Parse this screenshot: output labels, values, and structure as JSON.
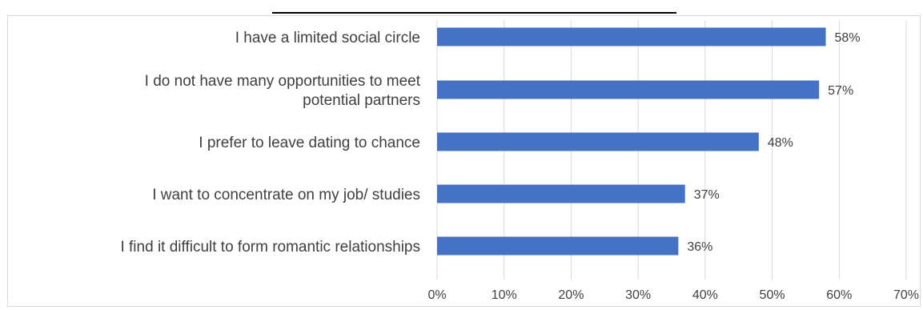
{
  "chart_data": {
    "type": "bar",
    "orientation": "horizontal",
    "title": "",
    "categories": [
      [
        "I have a limited social circle"
      ],
      [
        "I do not have many opportunities to meet",
        "potential partners"
      ],
      [
        "I prefer to leave dating to chance"
      ],
      [
        "I want to concentrate on my job/ studies"
      ],
      [
        "I find it difficult to form romantic relationships"
      ]
    ],
    "values": [
      58,
      57,
      48,
      37,
      36
    ],
    "data_labels": [
      "58%",
      "57%",
      "48%",
      "37%",
      "36%"
    ],
    "xlim": [
      0,
      70
    ],
    "x_ticks": [
      0,
      10,
      20,
      30,
      40,
      50,
      60,
      70
    ],
    "x_tick_labels": [
      "0%",
      "10%",
      "20%",
      "30%",
      "40%",
      "50%",
      "60%",
      "70%"
    ],
    "grid": true,
    "legend": "none",
    "colors": {
      "bar": "#4472c4",
      "grid": "#d9d9d9",
      "text": "#404040"
    }
  }
}
